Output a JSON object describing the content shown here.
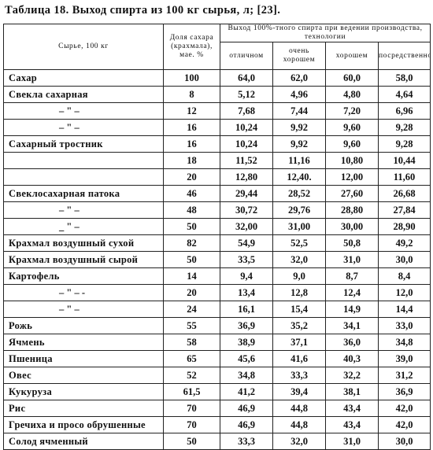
{
  "title": "Таблица 18. Выход спирта из 100 кг сырья, л; [23].",
  "headers": {
    "raw": "Сырье, 100 кг",
    "share": "Доля сахара (крахмала), мае. %",
    "yield_group": "Выход 100%-тного спирта при ведении производства, технологии",
    "excellent": "отличном",
    "very_good": "очень хорошем",
    "good": "хорошем",
    "mediocre": "посредственном"
  },
  "rows": [
    {
      "name": "Сахар",
      "share": "100",
      "v1": "64,0",
      "v2": "62,0",
      "v3": "60,0",
      "v4": "58,0"
    },
    {
      "name": "Свекла сахарная",
      "share": "8",
      "v1": "5,12",
      "v2": "4,96",
      "v3": "4,80",
      "v4": "4,64"
    },
    {
      "name": "– \" –",
      "share": "12",
      "v1": "7,68",
      "v2": "7,44",
      "v3": "7,20",
      "v4": "6,96"
    },
    {
      "name": "– \" –",
      "share": "16",
      "v1": "10,24",
      "v2": "9,92",
      "v3": "9,60",
      "v4": "9,28"
    },
    {
      "name": "Сахарный тростник",
      "share": "16",
      "v1": "10,24",
      "v2": "9,92",
      "v3": "9,60",
      "v4": "9,28"
    },
    {
      "name": "",
      "share": "18",
      "v1": "11,52",
      "v2": "11,16",
      "v3": "10,80",
      "v4": "10,44"
    },
    {
      "name": "",
      "share": "20",
      "v1": "12,80",
      "v2": "12,40.",
      "v3": "12,00",
      "v4": "11,60"
    },
    {
      "name": "Свеклосахарная патока",
      "share": "46",
      "v1": "29,44",
      "v2": "28,52",
      "v3": "27,60",
      "v4": "26,68"
    },
    {
      "name": "– \" –",
      "share": "48",
      "v1": "30,72",
      "v2": "29,76",
      "v3": "28,80",
      "v4": "27,84"
    },
    {
      "name": "_ \" –",
      "share": "50",
      "v1": "32,00",
      "v2": "31,00",
      "v3": "30,00",
      "v4": "28,90"
    },
    {
      "name": "Крахмал воздушный сухой",
      "share": "82",
      "v1": "54,9",
      "v2": "52,5",
      "v3": "50,8",
      "v4": "49,2"
    },
    {
      "name": "Крахмал воздушный сырой",
      "share": "50",
      "v1": "33,5",
      "v2": "32,0",
      "v3": "31,0",
      "v4": "30,0"
    },
    {
      "name": "Картофель",
      "share": "14",
      "v1": "9,4",
      "v2": "9,0",
      "v3": "8,7",
      "v4": "8,4"
    },
    {
      "name": "– \" – -",
      "share": "20",
      "v1": "13,4",
      "v2": "12,8",
      "v3": "12,4",
      "v4": "12,0"
    },
    {
      "name": "– \" –",
      "share": "24",
      "v1": "16,1",
      "v2": "15,4",
      "v3": "14,9",
      "v4": "14,4"
    },
    {
      "name": "Рожь",
      "share": "55",
      "v1": "36,9",
      "v2": "35,2",
      "v3": "34,1",
      "v4": "33,0"
    },
    {
      "name": "Ячмень",
      "share": "58",
      "v1": "38,9",
      "v2": "37,1",
      "v3": "36,0",
      "v4": "34,8"
    },
    {
      "name": "Пшеница",
      "share": "65",
      "v1": "45,6",
      "v2": "41,6",
      "v3": "40,3",
      "v4": "39,0"
    },
    {
      "name": "Овес",
      "share": "52",
      "v1": "34,8",
      "v2": "33,3",
      "v3": "32,2",
      "v4": "31,2"
    },
    {
      "name": "Кукуруза",
      "share": "61,5",
      "v1": "41,2",
      "v2": "39,4",
      "v3": "38,1",
      "v4": "36,9"
    },
    {
      "name": "Рис",
      "share": "70",
      "v1": "46,9",
      "v2": "44,8",
      "v3": "43,4",
      "v4": "42,0"
    },
    {
      "name": "Гречиха и просо обрушенные",
      "share": "70",
      "v1": "46,9",
      "v2": "44,8",
      "v3": "43,4",
      "v4": "42,0"
    },
    {
      "name": "Солод ячменный",
      "share": "50",
      "v1": "33,3",
      "v2": "32,0",
      "v3": "31,0",
      "v4": "30,0"
    }
  ]
}
